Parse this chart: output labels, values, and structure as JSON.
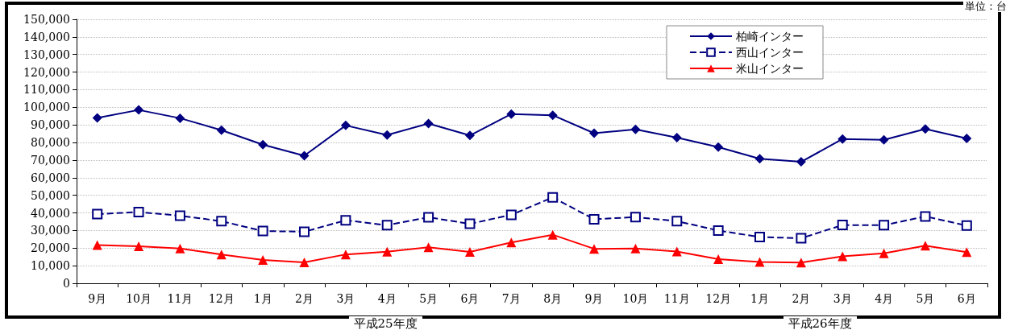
{
  "chart_data": {
    "type": "line",
    "categories": [
      "9月",
      "10月",
      "11月",
      "12月",
      "1月",
      "2月",
      "3月",
      "4月",
      "5月",
      "6月",
      "7月",
      "8月",
      "9月",
      "10月",
      "11月",
      "12月",
      "1月",
      "2月",
      "3月",
      "4月",
      "5月",
      "6月"
    ],
    "series": [
      {
        "name": "柏崎インター",
        "color": "#000080",
        "marker": "diamond",
        "line_style": "solid",
        "values": [
          94000,
          98500,
          93800,
          87000,
          78800,
          72500,
          89700,
          84300,
          90800,
          84000,
          96200,
          95500,
          85300,
          87500,
          82800,
          77400,
          70800,
          69000,
          82000,
          81500,
          87700,
          82300
        ]
      },
      {
        "name": "西山インター",
        "color": "#000080",
        "marker": "square",
        "line_style": "dashed",
        "values": [
          39300,
          40500,
          38400,
          35300,
          29700,
          29300,
          35800,
          33000,
          37500,
          33800,
          38900,
          48800,
          36400,
          37600,
          35300,
          30000,
          26300,
          25600,
          33100,
          33000,
          38000,
          32800
        ]
      },
      {
        "name": "米山インター",
        "color": "#ff0000",
        "marker": "triangle",
        "line_style": "solid",
        "values": [
          21700,
          21000,
          19800,
          16400,
          13300,
          11900,
          16400,
          17900,
          20500,
          17800,
          23200,
          27600,
          19600,
          19800,
          18100,
          13700,
          12100,
          11800,
          15300,
          17000,
          21400,
          17700
        ]
      }
    ],
    "ylim": [
      0,
      150000
    ],
    "yticks": [
      0,
      {
        "value": 10000,
        "label": "10,000"
      },
      {
        "value": 20000,
        "label": "20,000"
      },
      {
        "value": 30000,
        "label": "30,000"
      },
      {
        "value": 40000,
        "label": "40,000"
      },
      {
        "value": 50000,
        "label": "50,000"
      },
      {
        "value": 60000,
        "label": "60,000"
      },
      {
        "value": 70000,
        "label": "70,000"
      },
      {
        "value": 80000,
        "label": "80,000"
      },
      {
        "value": 90000,
        "label": "90,000"
      },
      {
        "value": 100000,
        "label": "100,000"
      },
      {
        "value": 110000,
        "label": "110,000"
      },
      {
        "value": 120000,
        "label": "120,000"
      },
      {
        "value": 130000,
        "label": "130,000"
      },
      {
        "value": 140000,
        "label": "140,000"
      },
      {
        "value": 150000,
        "label": "150,000"
      }
    ],
    "grid": "y",
    "legend": "top right",
    "annotations": [
      "単位：台",
      "平成25年度",
      "平成26年度"
    ]
  }
}
